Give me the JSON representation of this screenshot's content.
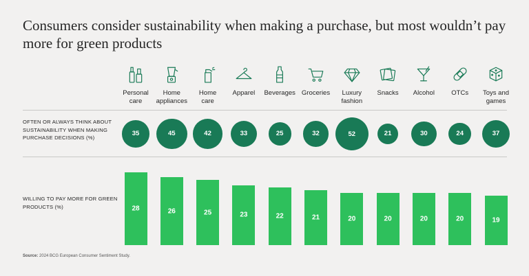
{
  "title": "Consumers consider sustainability when making a purchase, but most wouldn’t pay more for green products",
  "categories": [
    {
      "label": "Personal\ncare",
      "icon": "personal-care-icon"
    },
    {
      "label": "Home\nappliances",
      "icon": "blender-icon"
    },
    {
      "label": "Home\ncare",
      "icon": "spray-bottle-icon"
    },
    {
      "label": "Apparel",
      "icon": "hanger-icon"
    },
    {
      "label": "Beverages",
      "icon": "bottle-icon"
    },
    {
      "label": "Groceries",
      "icon": "cart-icon"
    },
    {
      "label": "Luxury\nfashion",
      "icon": "diamond-icon"
    },
    {
      "label": "Snacks",
      "icon": "cracker-icon"
    },
    {
      "label": "Alcohol",
      "icon": "cocktail-icon"
    },
    {
      "label": "OTCs",
      "icon": "bandage-icon"
    },
    {
      "label": "Toys and\ngames",
      "icon": "dice-icon"
    }
  ],
  "colors": {
    "bubble": "#197a56",
    "bar": "#2ec05c",
    "background": "#f2f1f0"
  },
  "chart_data": [
    {
      "type": "bubble",
      "label": "OFTEN OR ALWAYS THINK ABOUT SUSTAINABILITY WHEN MAKING PURCHASE DECISIONS (%)",
      "categories": [
        "Personal care",
        "Home appliances",
        "Home care",
        "Apparel",
        "Beverages",
        "Groceries",
        "Luxury fashion",
        "Snacks",
        "Alcohol",
        "OTCs",
        "Toys and games"
      ],
      "values": [
        35,
        45,
        42,
        33,
        25,
        32,
        52,
        21,
        30,
        24,
        37
      ]
    },
    {
      "type": "bar",
      "label": "WILLING TO PAY MORE FOR GREEN PRODUCTS (%)",
      "categories": [
        "Personal care",
        "Home appliances",
        "Home care",
        "Apparel",
        "Beverages",
        "Groceries",
        "Luxury fashion",
        "Snacks",
        "Alcohol",
        "OTCs",
        "Toys and games"
      ],
      "values": [
        28,
        26,
        25,
        23,
        22,
        21,
        20,
        20,
        20,
        20,
        19
      ]
    }
  ],
  "source": {
    "label": "Source:",
    "text": "2024 BCG European Consumer Sentiment Study."
  }
}
